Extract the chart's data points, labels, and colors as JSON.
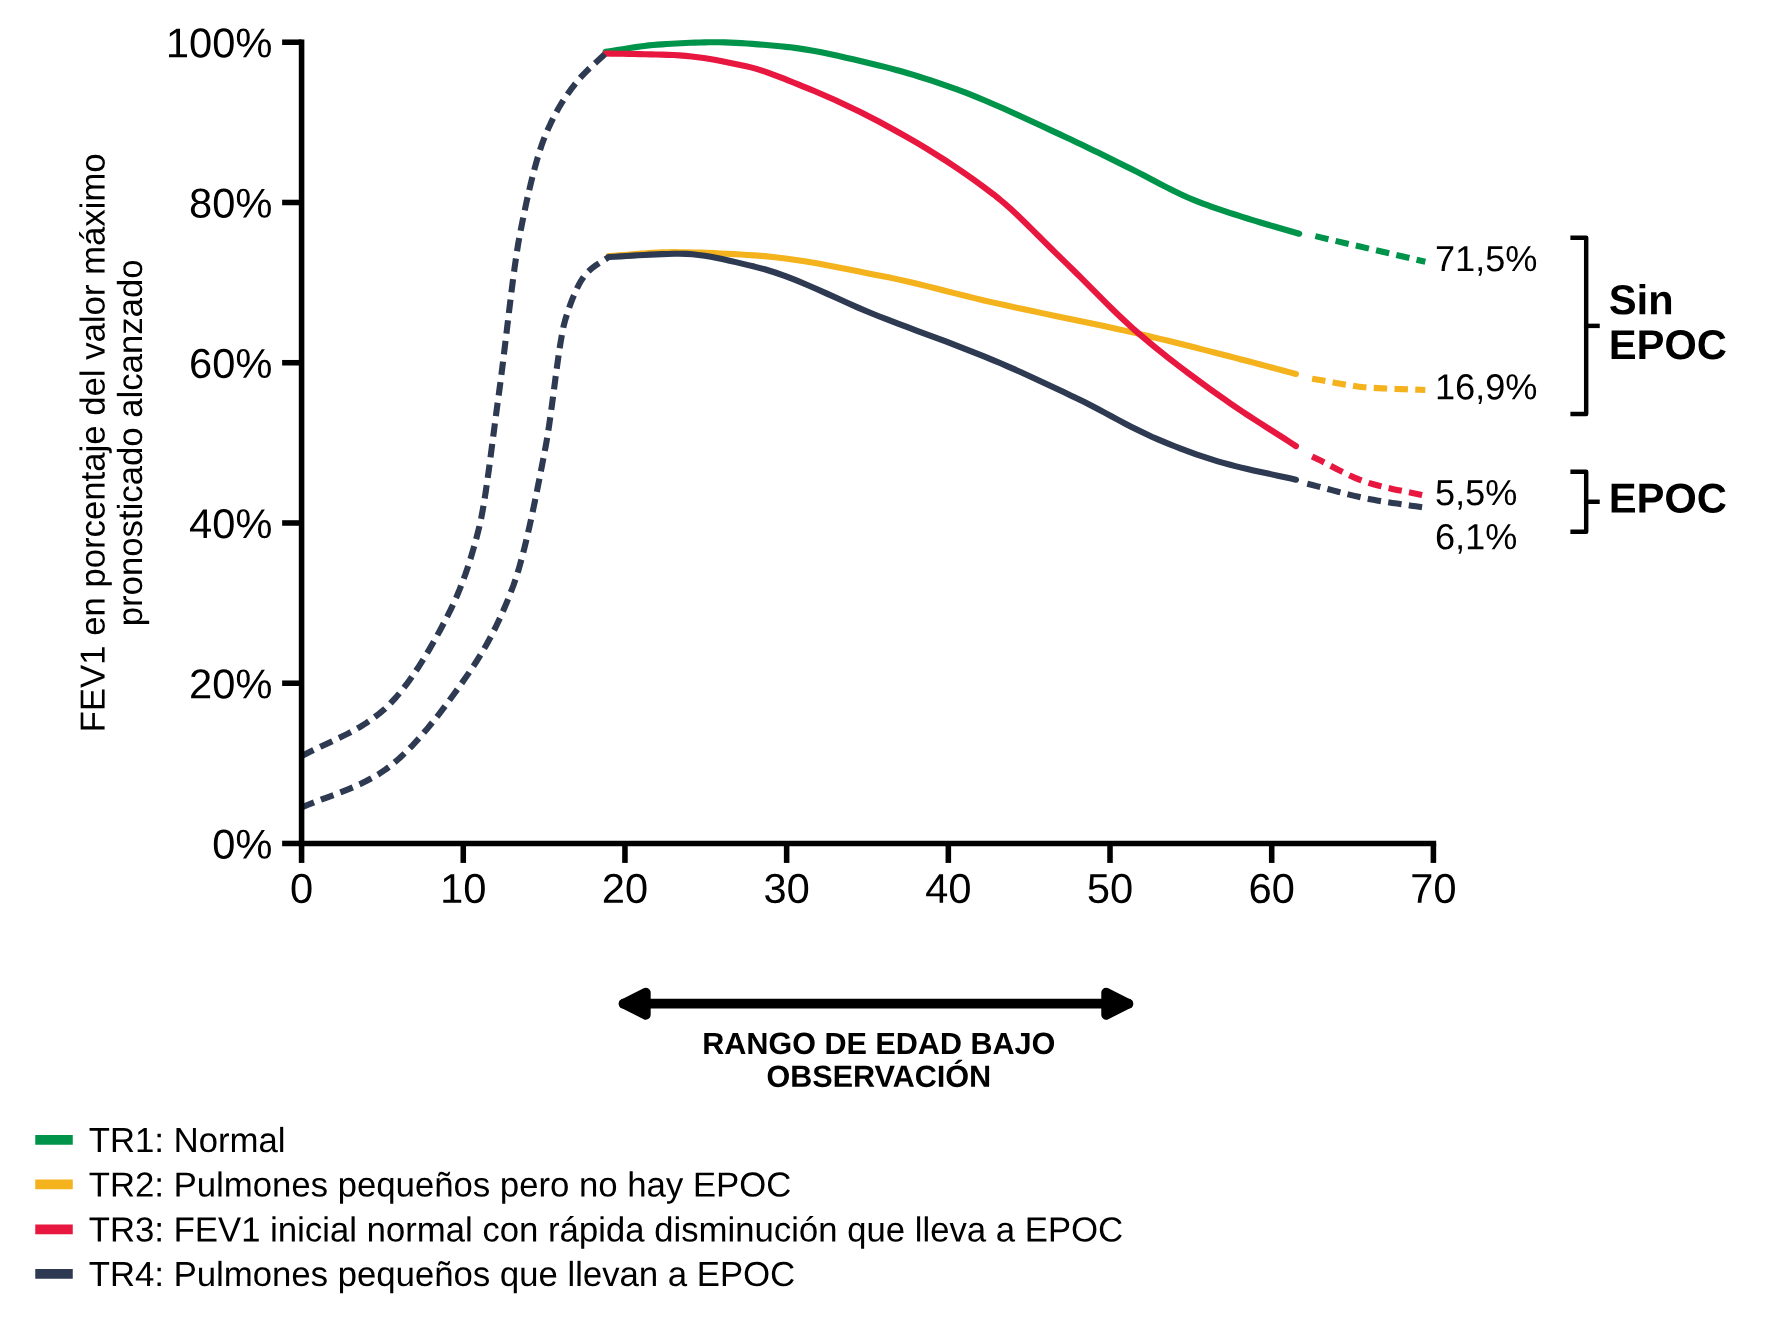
{
  "chart_data": {
    "type": "line",
    "ylabel": "FEV1 en porcentaje del valor máximo\npronosticado alcanzado",
    "xlim": [
      0,
      70
    ],
    "xticks": [
      0,
      10,
      20,
      30,
      40,
      50,
      60,
      70
    ],
    "ylim": [
      0,
      100
    ],
    "yticks": [
      {
        "value": 0,
        "label": "0%"
      },
      {
        "value": 20,
        "label": "20%"
      },
      {
        "value": 40,
        "label": "40%"
      },
      {
        "value": 60,
        "label": "60%"
      },
      {
        "value": 80,
        "label": "80%"
      },
      {
        "value": 100,
        "label": "100%"
      }
    ],
    "grid": false,
    "legend": "bottom",
    "marker": "none",
    "series": [
      {
        "name": "TR1: Normal",
        "color": "#00934a",
        "line_style": "solid",
        "x": [
          18.8,
          22,
          25.5,
          29.6,
          35.7,
          40,
          46.9,
          51,
          55.2,
          58.5,
          61.7
        ],
        "values": [
          98.8,
          99.7,
          100,
          99.5,
          97.1,
          94.5,
          88.5,
          84.5,
          80.3,
          78,
          76.1
        ]
      },
      {
        "name": "TR2: Pulmones pequeños pero no hay EPOC",
        "color": "#f4b21c",
        "line_style": "solid",
        "x": [
          19,
          23,
          28,
          35.7,
          42.8,
          51.8,
          57,
          61.5
        ],
        "values": [
          73.3,
          73.8,
          73.4,
          70.9,
          67.5,
          63.6,
          61,
          58.6
        ]
      },
      {
        "name": "TR3: FEV1 inicial normal con rápida disminución que lleva a EPOC",
        "color": "#e8173f",
        "line_style": "solid",
        "x": [
          18.8,
          23,
          27.5,
          31,
          35.7,
          42.8,
          47,
          51.8,
          57.1,
          61.5
        ],
        "values": [
          98.6,
          98.4,
          97,
          94.5,
          90.1,
          81,
          73,
          63.6,
          55.4,
          49.6
        ]
      },
      {
        "name": "TR4: Pulmones pequeños que llevan a EPOC",
        "color": "#2d3a52",
        "line_style": "solid",
        "x": [
          19,
          23.4,
          28,
          35.7,
          42.8,
          48,
          53,
          57,
          61.5
        ],
        "values": [
          73.2,
          73.6,
          72,
          65.8,
          60.3,
          55.5,
          50.4,
          47.5,
          45.4
        ]
      },
      {
        "color": "#00934a",
        "line_style": "dotted",
        "x": [
          62.7,
          69.5
        ],
        "values": [
          75.8,
          72.6
        ]
      },
      {
        "color": "#f4b21c",
        "line_style": "dotted",
        "x": [
          62.5,
          66,
          69.5
        ],
        "values": [
          58,
          56.9,
          56.6
        ]
      },
      {
        "color": "#e8173f",
        "line_style": "dotted",
        "x": [
          62.5,
          66,
          69.5
        ],
        "values": [
          48.3,
          45,
          43.4
        ]
      },
      {
        "color": "#2d3a52",
        "line_style": "dotted",
        "x": [
          62.2,
          66,
          69.5
        ],
        "values": [
          44.9,
          43,
          41.9
        ]
      },
      {
        "color": "#2d3a52",
        "line_style": "dotted",
        "x": [
          0,
          4.8,
          8.9,
          11,
          12.2,
          13.5,
          15.1,
          17,
          18.8
        ],
        "values": [
          10.9,
          16.2,
          27.9,
          39.6,
          56.1,
          76,
          88.5,
          95,
          98.6
        ]
      },
      {
        "color": "#2d3a52",
        "line_style": "dotted",
        "x": [
          0,
          4.8,
          9.8,
          13.1,
          15.1,
          16.3,
          17.6,
          19
        ],
        "values": [
          4.5,
          8.7,
          19.7,
          32.2,
          49.6,
          65.3,
          71.1,
          73.2
        ]
      }
    ],
    "annotations": [
      "71,5%",
      "16,9%",
      "5,5%",
      "6,1%",
      "Sin\nEPOC",
      "EPOC",
      "RANGO DE EDAD BAJO\nOBSERVACIÓN"
    ]
  }
}
